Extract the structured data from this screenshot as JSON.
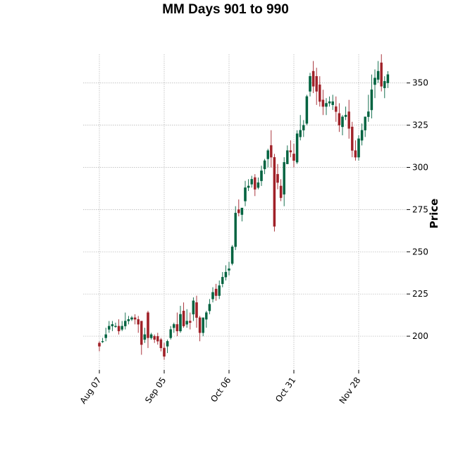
{
  "chart_data": {
    "type": "candlestick",
    "title": "MM Days 901 to 990",
    "xlabel": "",
    "ylabel": "Price",
    "ylim": [
      180,
      367
    ],
    "y_ticks": [
      200,
      225,
      250,
      275,
      300,
      325,
      350
    ],
    "y_axis_side": "right",
    "grid": true,
    "x_tick_labels": [
      {
        "label": "Aug 07",
        "index": 0
      },
      {
        "label": "Sep 05",
        "index": 20
      },
      {
        "label": "Oct 06",
        "index": 40
      },
      {
        "label": "Oct 31",
        "index": 60
      },
      {
        "label": "Nov 28",
        "index": 80
      }
    ],
    "colors": {
      "up": "#006340",
      "down": "#a02128",
      "grid": "#b0b0b0"
    },
    "candles": [
      [
        196,
        197,
        194,
        191
      ],
      [
        197,
        199,
        197,
        196
      ],
      [
        199,
        205,
        201,
        197
      ],
      [
        204,
        209,
        206,
        202
      ],
      [
        206,
        209,
        207,
        203
      ],
      [
        206,
        208,
        206,
        205
      ],
      [
        206,
        210,
        203,
        201
      ],
      [
        204,
        209,
        206,
        203
      ],
      [
        206,
        214,
        209,
        204
      ],
      [
        209,
        212,
        210,
        207
      ],
      [
        210,
        212,
        211,
        209
      ],
      [
        211,
        213,
        210,
        207
      ],
      [
        210,
        212,
        207,
        202
      ],
      [
        209,
        209,
        195,
        189
      ],
      [
        198,
        205,
        201,
        196
      ],
      [
        214,
        215,
        199,
        193
      ],
      [
        199,
        202,
        201,
        198
      ],
      [
        200,
        201,
        198,
        196
      ],
      [
        200,
        202,
        197,
        195
      ],
      [
        198,
        199,
        193,
        191
      ],
      [
        193,
        196,
        188,
        186
      ],
      [
        194,
        198,
        197,
        190
      ],
      [
        199,
        206,
        204,
        198
      ],
      [
        205,
        208,
        207,
        202
      ],
      [
        207,
        214,
        203,
        200
      ],
      [
        203,
        218,
        213,
        202
      ],
      [
        215,
        220,
        206,
        205
      ],
      [
        207,
        216,
        209,
        205
      ],
      [
        209,
        214,
        208,
        204
      ],
      [
        213,
        223,
        221,
        209
      ],
      [
        220,
        224,
        211,
        205
      ],
      [
        211,
        212,
        202,
        197
      ],
      [
        202,
        208,
        211,
        200
      ],
      [
        210,
        215,
        214,
        205
      ],
      [
        215,
        222,
        219,
        213
      ],
      [
        222,
        229,
        226,
        220
      ],
      [
        228,
        231,
        224,
        221
      ],
      [
        224,
        233,
        230,
        222
      ],
      [
        231,
        238,
        235,
        229
      ],
      [
        235,
        242,
        238,
        233
      ],
      [
        239,
        244,
        240,
        236
      ],
      [
        243,
        254,
        253,
        242
      ],
      [
        253,
        277,
        273,
        251
      ],
      [
        275,
        281,
        273,
        271
      ],
      [
        272,
        276,
        276,
        268
      ],
      [
        280,
        292,
        288,
        277
      ],
      [
        288,
        293,
        289,
        286
      ],
      [
        290,
        295,
        293,
        288
      ],
      [
        294,
        296,
        287,
        283
      ],
      [
        288,
        294,
        291,
        287
      ],
      [
        292,
        301,
        298,
        289
      ],
      [
        299,
        305,
        304,
        296
      ],
      [
        305,
        311,
        310,
        300
      ],
      [
        313,
        322,
        306,
        300
      ],
      [
        306,
        308,
        265,
        262
      ],
      [
        296,
        302,
        291,
        287
      ],
      [
        289,
        293,
        282,
        280
      ],
      [
        284,
        306,
        303,
        277
      ],
      [
        302,
        313,
        310,
        303
      ],
      [
        310,
        316,
        309,
        306
      ],
      [
        308,
        314,
        304,
        300
      ],
      [
        303,
        322,
        320,
        302
      ],
      [
        318,
        331,
        322,
        316
      ],
      [
        322,
        328,
        325,
        318
      ],
      [
        326,
        343,
        342,
        325
      ],
      [
        345,
        356,
        354,
        342
      ],
      [
        357,
        363,
        348,
        344
      ],
      [
        354,
        359,
        345,
        337
      ],
      [
        349,
        354,
        339,
        336
      ],
      [
        340,
        346,
        336,
        331
      ],
      [
        336,
        341,
        338,
        331
      ],
      [
        338,
        342,
        339,
        336
      ],
      [
        337,
        343,
        339,
        334
      ],
      [
        336,
        342,
        333,
        327
      ],
      [
        332,
        338,
        325,
        321
      ],
      [
        324,
        331,
        330,
        319
      ],
      [
        330,
        336,
        331,
        328
      ],
      [
        333,
        340,
        323,
        317
      ],
      [
        324,
        327,
        310,
        306
      ],
      [
        310,
        316,
        306,
        304
      ],
      [
        306,
        319,
        317,
        304
      ],
      [
        316,
        326,
        322,
        313
      ],
      [
        322,
        330,
        330,
        318
      ],
      [
        330,
        343,
        333,
        327
      ],
      [
        334,
        355,
        346,
        329
      ],
      [
        349,
        358,
        353,
        341
      ],
      [
        352,
        363,
        357,
        350
      ],
      [
        362,
        367,
        348,
        345
      ],
      [
        347,
        354,
        351,
        341
      ],
      [
        350,
        357,
        355,
        347
      ]
    ]
  }
}
